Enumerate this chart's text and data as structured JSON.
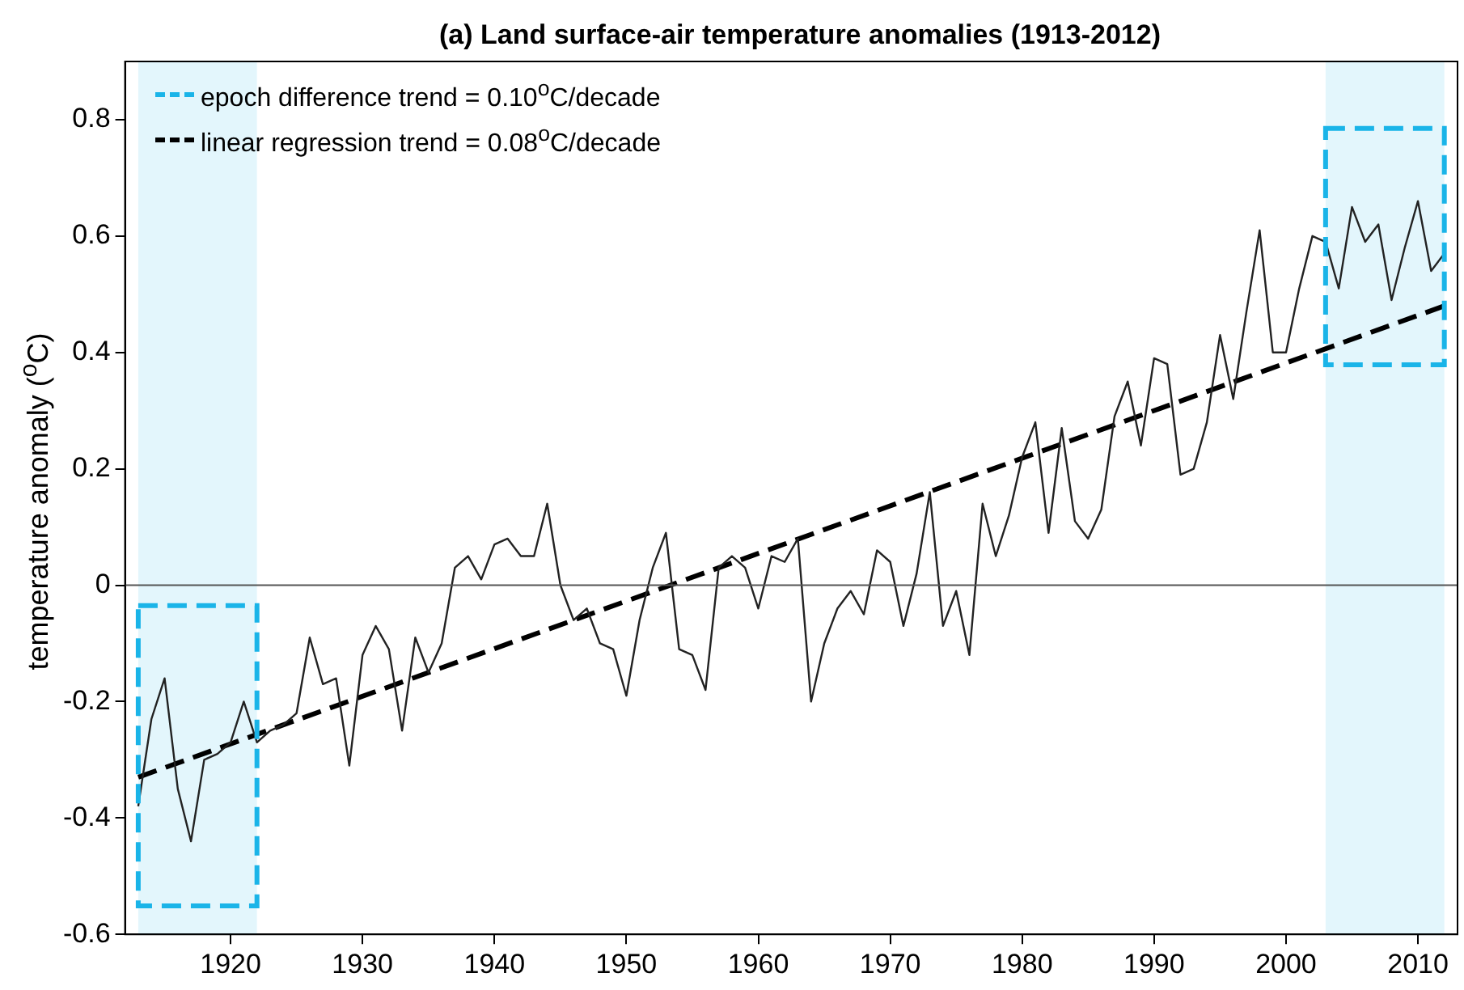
{
  "chart_data": {
    "type": "line",
    "title": "(a) Land surface-air temperature anomalies (1913-2012)",
    "ylabel": "temperature anomaly ($^{o}$C)",
    "x": [
      1913,
      1914,
      1915,
      1916,
      1917,
      1918,
      1919,
      1920,
      1921,
      1922,
      1923,
      1924,
      1925,
      1926,
      1927,
      1928,
      1929,
      1930,
      1931,
      1932,
      1933,
      1934,
      1935,
      1936,
      1937,
      1938,
      1939,
      1940,
      1941,
      1942,
      1943,
      1944,
      1945,
      1946,
      1947,
      1948,
      1949,
      1950,
      1951,
      1952,
      1953,
      1954,
      1955,
      1956,
      1957,
      1958,
      1959,
      1960,
      1961,
      1962,
      1963,
      1964,
      1965,
      1966,
      1967,
      1968,
      1969,
      1970,
      1971,
      1972,
      1973,
      1974,
      1975,
      1976,
      1977,
      1978,
      1979,
      1980,
      1981,
      1982,
      1983,
      1984,
      1985,
      1986,
      1987,
      1988,
      1989,
      1990,
      1991,
      1992,
      1993,
      1994,
      1995,
      1996,
      1997,
      1998,
      1999,
      2000,
      2001,
      2002,
      2003,
      2004,
      2005,
      2006,
      2007,
      2008,
      2009,
      2010,
      2011,
      2012
    ],
    "series": [
      {
        "color": "#222222",
        "values": [
          -0.38,
          -0.23,
          -0.16,
          -0.35,
          -0.44,
          -0.3,
          -0.29,
          -0.27,
          -0.2,
          -0.27,
          -0.25,
          -0.24,
          -0.22,
          -0.09,
          -0.17,
          -0.16,
          -0.31,
          -0.12,
          -0.07,
          -0.11,
          -0.25,
          -0.09,
          -0.15,
          -0.1,
          0.03,
          0.05,
          0.01,
          0.07,
          0.08,
          0.05,
          0.05,
          0.14,
          0.0,
          -0.06,
          -0.04,
          -0.1,
          -0.11,
          -0.19,
          -0.06,
          0.03,
          0.09,
          -0.11,
          -0.12,
          -0.18,
          0.03,
          0.05,
          0.03,
          -0.04,
          0.05,
          0.04,
          0.08,
          -0.2,
          -0.1,
          -0.04,
          -0.01,
          -0.05,
          0.06,
          0.04,
          -0.07,
          0.02,
          0.16,
          -0.07,
          -0.01,
          -0.12,
          0.14,
          0.05,
          0.12,
          0.22,
          0.28,
          0.09,
          0.27,
          0.11,
          0.08,
          0.13,
          0.29,
          0.35,
          0.24,
          0.39,
          0.38,
          0.19,
          0.2,
          0.28,
          0.43,
          0.32,
          0.47,
          0.61,
          0.4,
          0.4,
          0.51,
          0.6,
          0.59,
          0.51,
          0.65,
          0.59,
          0.62,
          0.49,
          0.58,
          0.66,
          0.54,
          0.57
        ]
      },
      {
        "name": "linear regression trend = 0.08$^{o}$C/decade",
        "color": "#000000",
        "line_style": "dashed",
        "x": [
          1913,
          2012
        ],
        "values": [
          -0.33,
          0.48
        ]
      }
    ],
    "xlim": [
      1912,
      2013
    ],
    "xticks": [
      1920,
      1930,
      1940,
      1950,
      1960,
      1970,
      1980,
      1990,
      2000,
      2010
    ],
    "ylim": [
      -0.6,
      0.9
    ],
    "yticks": [
      -0.6,
      -0.4,
      -0.2,
      0,
      0.2,
      0.4,
      0.6,
      0.8
    ],
    "bands": [
      {
        "axis": "x",
        "from": 1913,
        "to": 1922,
        "label": "epoch difference trend = 0.10$^{o}$C/decade",
        "color": "#1ab4e8"
      },
      {
        "axis": "x",
        "from": 2003,
        "to": 2012,
        "color": "#1ab4e8"
      }
    ],
    "ref_lines": [
      {
        "axis": "y",
        "value": 0,
        "color": "#555555"
      }
    ],
    "grid": false,
    "legend": "top left",
    "marker": "none",
    "line_style": "solid"
  }
}
